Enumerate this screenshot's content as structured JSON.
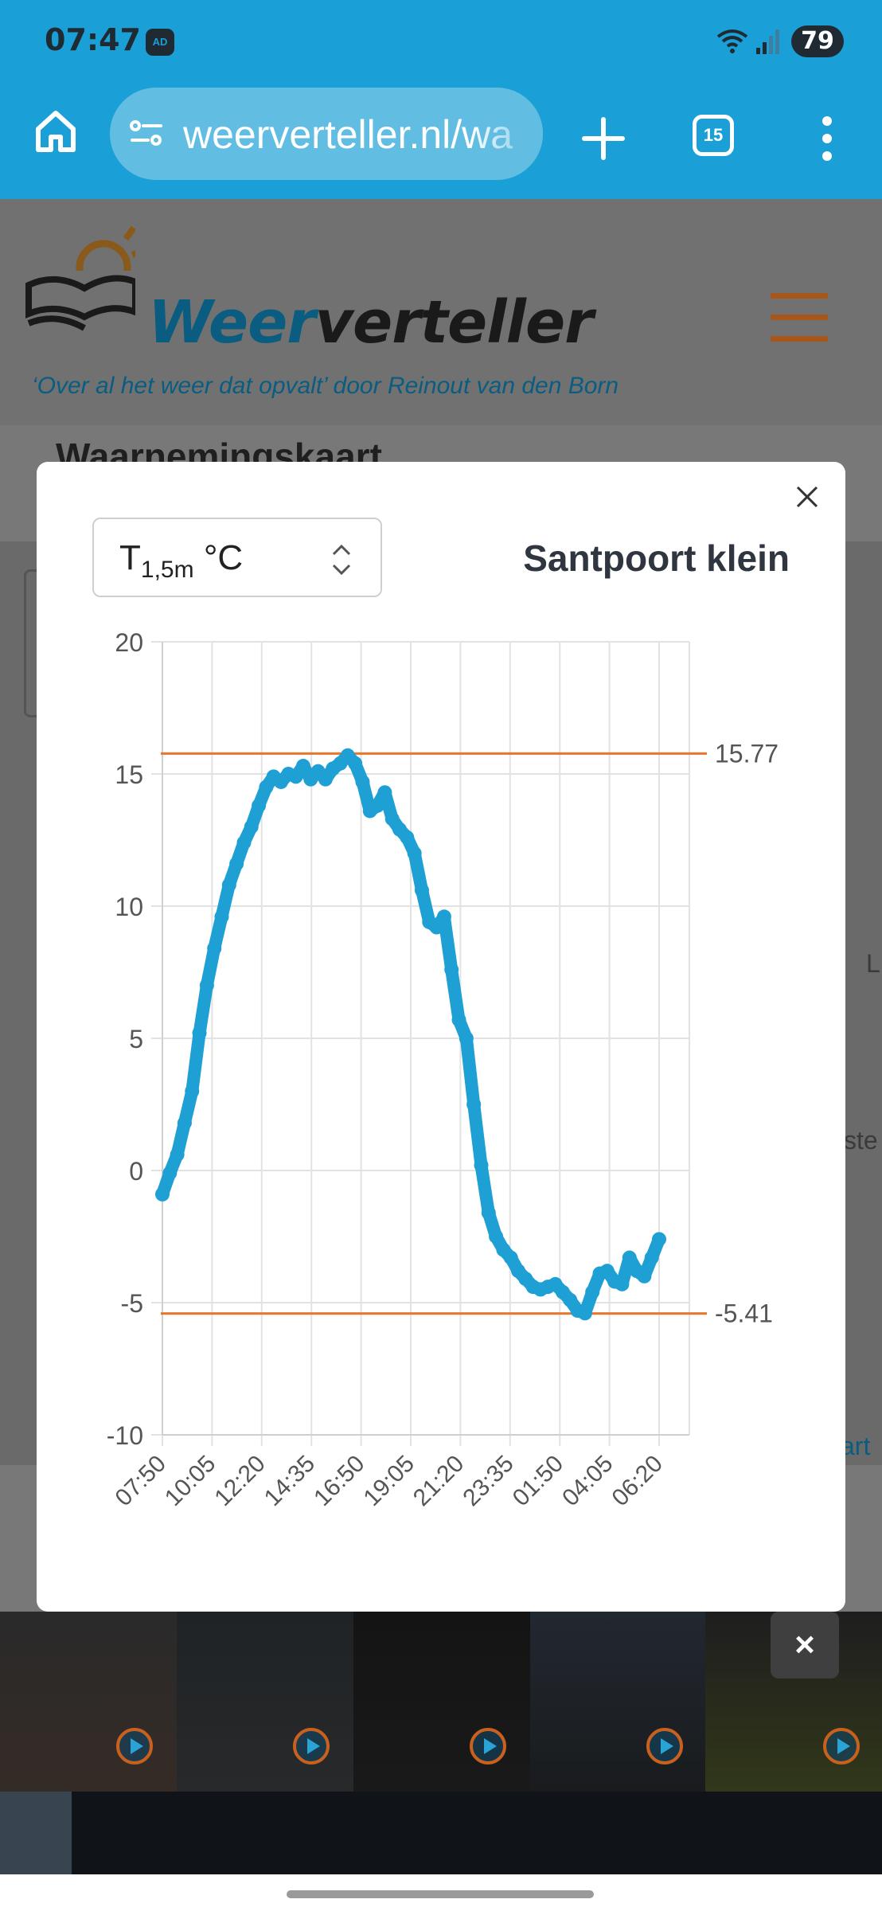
{
  "status_bar": {
    "time": "07:47",
    "ad_badge": "AD",
    "battery": "79"
  },
  "browser": {
    "url": "weerverteller.nl/wa",
    "tab_count": "15"
  },
  "site": {
    "brand_part1": "Weer",
    "brand_part2": "verteller",
    "tagline": "‘Over al het weer dat opvalt’ door Reinout van den Born",
    "page_title": "Waarnemingskaart",
    "map_fragments": [
      "L",
      "ste",
      "art"
    ]
  },
  "modal": {
    "selector": {
      "main": "T",
      "sub": "1,5m",
      "unit": " °C"
    },
    "station": "Santpoort klein"
  },
  "chart_data": {
    "type": "line",
    "x_tick_labels": [
      "07:50",
      "10:05",
      "12:20",
      "14:35",
      "16:50",
      "19:05",
      "21:20",
      "23:35",
      "01:50",
      "04:05",
      "06:20"
    ],
    "y_ticks": [
      20,
      15,
      10,
      5,
      0,
      -5,
      -10
    ],
    "y_tick_labels": [
      "20",
      "15",
      "10",
      "5",
      "0",
      "-5",
      "-10"
    ],
    "ylim": [
      -10,
      20
    ],
    "grid": true,
    "reference_lines": [
      {
        "value": 15.77,
        "label": "15.77",
        "color": "#e8762b"
      },
      {
        "value": -5.41,
        "label": "-5.41",
        "color": "#e8762b"
      }
    ],
    "series": [
      {
        "color": "#1ea0d4",
        "points": [
          [
            0,
            -0.9
          ],
          [
            0.2,
            -0.1
          ],
          [
            0.4,
            0.6
          ],
          [
            0.6,
            1.8
          ],
          [
            0.8,
            3.0
          ],
          [
            1.0,
            5.2
          ],
          [
            1.2,
            7.0
          ],
          [
            1.4,
            8.4
          ],
          [
            1.6,
            9.6
          ],
          [
            1.8,
            10.8
          ],
          [
            2.0,
            11.6
          ],
          [
            2.2,
            12.4
          ],
          [
            2.4,
            13.0
          ],
          [
            2.6,
            13.8
          ],
          [
            2.8,
            14.5
          ],
          [
            3.0,
            14.9
          ],
          [
            3.2,
            14.7
          ],
          [
            3.4,
            15.0
          ],
          [
            3.6,
            14.9
          ],
          [
            3.8,
            15.3
          ],
          [
            4.0,
            14.8
          ],
          [
            4.2,
            15.1
          ],
          [
            4.4,
            14.8
          ],
          [
            4.6,
            15.2
          ],
          [
            4.8,
            15.4
          ],
          [
            5.0,
            15.7
          ],
          [
            5.2,
            15.4
          ],
          [
            5.4,
            14.7
          ],
          [
            5.6,
            13.6
          ],
          [
            5.8,
            13.8
          ],
          [
            6.0,
            14.3
          ],
          [
            6.2,
            13.3
          ],
          [
            6.4,
            12.9
          ],
          [
            6.6,
            12.6
          ],
          [
            6.8,
            12.0
          ],
          [
            7.0,
            10.6
          ],
          [
            7.2,
            9.4
          ],
          [
            7.4,
            9.2
          ],
          [
            7.6,
            9.6
          ],
          [
            7.8,
            7.6
          ],
          [
            8.0,
            5.7
          ],
          [
            8.2,
            5.0
          ],
          [
            8.4,
            2.5
          ],
          [
            8.6,
            0.2
          ],
          [
            8.8,
            -1.6
          ],
          [
            9.0,
            -2.5
          ],
          [
            9.2,
            -3.0
          ],
          [
            9.4,
            -3.3
          ],
          [
            9.6,
            -3.8
          ],
          [
            9.8,
            -4.1
          ],
          [
            10.0,
            -4.4
          ],
          [
            10.2,
            -4.5
          ],
          [
            10.4,
            -4.4
          ],
          [
            10.6,
            -4.3
          ],
          [
            10.8,
            -4.6
          ],
          [
            11.0,
            -4.9
          ],
          [
            11.2,
            -5.3
          ],
          [
            11.4,
            -5.4
          ],
          [
            11.6,
            -4.6
          ],
          [
            11.8,
            -3.9
          ],
          [
            12.0,
            -3.8
          ],
          [
            12.2,
            -4.2
          ],
          [
            12.4,
            -4.3
          ],
          [
            12.6,
            -3.3
          ],
          [
            12.8,
            -3.8
          ],
          [
            13.0,
            -4.0
          ],
          [
            13.2,
            -3.3
          ],
          [
            13.4,
            -2.6
          ]
        ]
      }
    ]
  }
}
